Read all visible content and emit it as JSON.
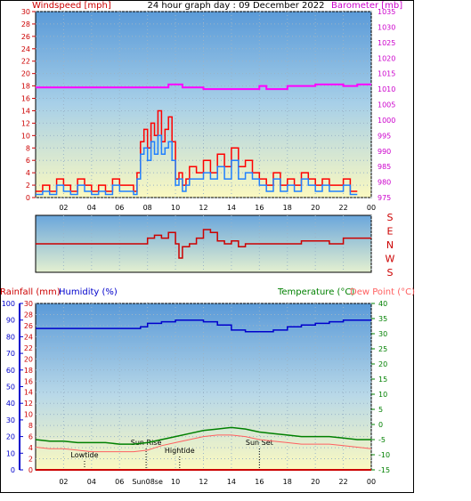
{
  "chart_data": [
    {
      "type": "line",
      "title": "24 hour graph day : 09 December 2022",
      "ylabel_left": "Windspeed [mph]",
      "ylabel_right": "Barometer [mb]",
      "x_ticks": [
        "02",
        "04",
        "06",
        "08",
        "10",
        "12",
        "14",
        "16",
        "18",
        "20",
        "22",
        "00"
      ],
      "x_range": [
        0,
        24
      ],
      "y_left_ticks": [
        "0",
        "2",
        "4",
        "6",
        "8",
        "10",
        "12",
        "14",
        "16",
        "18",
        "20",
        "22",
        "24",
        "26",
        "28",
        "30"
      ],
      "y_left_range": [
        0,
        30
      ],
      "y_right_ticks": [
        "975",
        "980",
        "985",
        "990",
        "995",
        "1000",
        "1005",
        "1010",
        "1015",
        "1020",
        "1025",
        "1030",
        "1035"
      ],
      "y_right_range": [
        975,
        1035
      ],
      "series": [
        {
          "name": "Windspeed [mph]",
          "color": "#ff0000",
          "x": [
            0,
            0.5,
            1,
            1.5,
            2,
            2.5,
            3,
            3.5,
            4,
            4.5,
            5,
            5.5,
            6,
            6.5,
            7,
            7.25,
            7.5,
            7.75,
            8,
            8.25,
            8.5,
            8.75,
            9,
            9.25,
            9.5,
            9.75,
            10,
            10.25,
            10.5,
            10.75,
            11,
            11.5,
            12,
            12.5,
            13,
            13.5,
            14,
            14.5,
            15,
            15.5,
            16,
            16.5,
            17,
            17.5,
            18,
            18.5,
            19,
            19.5,
            20,
            20.5,
            21,
            21.5,
            22,
            22.5,
            23
          ],
          "values": [
            1,
            2,
            1,
            3,
            2,
            1,
            3,
            2,
            1,
            2,
            1,
            3,
            2,
            2,
            1,
            4,
            9,
            11,
            8,
            12,
            10,
            14,
            9,
            11,
            13,
            9,
            3,
            4,
            2,
            3,
            5,
            4,
            6,
            4,
            7,
            5,
            8,
            5,
            6,
            4,
            3,
            2,
            4,
            2,
            3,
            2,
            4,
            3,
            2,
            3,
            2,
            2,
            3,
            1,
            1
          ]
        },
        {
          "name": "Gust",
          "color": "#2080ff",
          "x": [
            0,
            0.5,
            1,
            1.5,
            2,
            2.5,
            3,
            3.5,
            4,
            4.5,
            5,
            5.5,
            6,
            6.5,
            7,
            7.25,
            7.5,
            7.75,
            8,
            8.25,
            8.5,
            8.75,
            9,
            9.25,
            9.5,
            9.75,
            10,
            10.25,
            10.5,
            10.75,
            11,
            11.5,
            12,
            12.5,
            13,
            13.5,
            14,
            14.5,
            15,
            15.5,
            16,
            16.5,
            17,
            17.5,
            18,
            18.5,
            19,
            19.5,
            20,
            20.5,
            21,
            21.5,
            22,
            22.5,
            23
          ],
          "values": [
            0.5,
            1,
            0.5,
            2,
            1,
            0.5,
            2,
            1,
            0.5,
            1,
            0.5,
            2,
            1,
            1,
            0.5,
            3,
            7,
            8,
            6,
            9,
            7,
            10,
            7,
            8,
            9,
            6,
            2,
            3,
            1,
            2,
            3,
            3,
            4,
            3,
            5,
            3,
            6,
            3,
            4,
            3,
            2,
            1,
            3,
            1,
            2,
            1,
            3,
            2,
            1,
            2,
            1,
            1,
            2,
            0.5,
            0.5
          ]
        },
        {
          "name": "Barometer [mb]",
          "color": "#ff00ff",
          "axis": "right",
          "x": [
            0,
            1,
            2,
            3,
            4,
            5,
            6,
            7,
            8,
            9,
            9.5,
            10,
            10.5,
            11,
            11.5,
            12,
            12.5,
            13,
            13.5,
            14,
            14.5,
            15,
            15.5,
            16,
            16.5,
            17,
            18,
            19,
            20,
            21,
            21.5,
            22,
            23,
            24
          ],
          "values": [
            1010.5,
            1010.5,
            1010.5,
            1010.5,
            1010.5,
            1010.5,
            1010.5,
            1010.5,
            1010.5,
            1010.5,
            1011.5,
            1011.5,
            1010.5,
            1010.5,
            1010.5,
            1010,
            1010,
            1010,
            1010,
            1010,
            1010,
            1010,
            1010,
            1011,
            1010,
            1010,
            1011,
            1011,
            1011.5,
            1011.5,
            1011.5,
            1011,
            1011.5,
            1011.5
          ]
        }
      ]
    },
    {
      "type": "line",
      "title": "",
      "y_ticks": [
        "S",
        "E",
        "N",
        "W",
        "S"
      ],
      "series": [
        {
          "name": "Wind direction",
          "color": "#cc0000",
          "x": [
            0,
            1,
            2,
            3,
            4,
            5,
            6,
            7,
            7.5,
            8,
            8.5,
            9,
            9.5,
            10,
            10.25,
            10.5,
            11,
            11.5,
            12,
            12.5,
            13,
            13.5,
            14,
            14.5,
            15,
            15.5,
            16,
            17,
            18,
            19,
            20,
            21,
            22,
            23,
            24
          ],
          "values": [
            0.5,
            0.5,
            0.5,
            0.5,
            0.5,
            0.5,
            0.5,
            0.5,
            0.5,
            0.4,
            0.35,
            0.4,
            0.3,
            0.5,
            0.75,
            0.55,
            0.5,
            0.4,
            0.25,
            0.3,
            0.45,
            0.5,
            0.45,
            0.55,
            0.5,
            0.5,
            0.5,
            0.5,
            0.5,
            0.45,
            0.45,
            0.5,
            0.4,
            0.4,
            0.4
          ]
        }
      ]
    },
    {
      "type": "line",
      "title": "",
      "ylabel_left1": "Rainfall (mm)",
      "ylabel_left2": "Humidity (%)",
      "ylabel_right1": "Temperature (°C)",
      "ylabel_right2": "Dew Point (°C)",
      "x_ticks": [
        "02",
        "04",
        "06",
        "08",
        "10",
        "12",
        "14",
        "16",
        "18",
        "20",
        "22",
        "00"
      ],
      "y_humidity_ticks": [
        "0",
        "10",
        "20",
        "30",
        "40",
        "50",
        "60",
        "70",
        "80",
        "90",
        "100"
      ],
      "y_rain_ticks": [
        "0",
        "2",
        "4",
        "6",
        "8",
        "10",
        "12",
        "14",
        "16",
        "18",
        "20",
        "22",
        "24",
        "26",
        "28",
        "30"
      ],
      "y_temp_ticks": [
        "-15",
        "-10",
        "-5",
        "0",
        "5",
        "10",
        "15",
        "20",
        "25",
        "30",
        "35",
        "40"
      ],
      "annotations": [
        {
          "label": "Lowtide",
          "x": 3.5
        },
        {
          "label": "Sun Rise",
          "x": 7.9
        },
        {
          "label": "Hightide",
          "x": 10.3
        },
        {
          "label": "Sun Set",
          "x": 16
        }
      ],
      "sunrise_tick_label": "Sun08se",
      "series": [
        {
          "name": "Humidity (%)",
          "color": "#0000cc",
          "x": [
            0,
            1,
            2,
            3,
            4,
            5,
            6,
            7,
            7.5,
            8,
            8.5,
            9,
            10,
            11,
            12,
            13,
            14,
            15,
            16,
            17,
            18,
            19,
            20,
            21,
            22,
            23,
            24
          ],
          "values": [
            85,
            85,
            85,
            85,
            85,
            85,
            85,
            85,
            86,
            88,
            88,
            89,
            90,
            90,
            89,
            87,
            84,
            83,
            83,
            84,
            86,
            87,
            88,
            89,
            90,
            90,
            90
          ]
        },
        {
          "name": "Temperature (°C)",
          "color": "#008000",
          "x": [
            0,
            1,
            2,
            3,
            4,
            5,
            6,
            7,
            8,
            9,
            10,
            11,
            12,
            13,
            14,
            15,
            16,
            17,
            18,
            19,
            20,
            21,
            22,
            23,
            24
          ],
          "values": [
            -5,
            -5.5,
            -5.5,
            -6,
            -6,
            -6,
            -6.5,
            -6.5,
            -6,
            -5,
            -4,
            -3,
            -2,
            -1.5,
            -1,
            -1.5,
            -2.5,
            -3,
            -3.5,
            -4,
            -4,
            -4,
            -4.5,
            -5,
            -5
          ]
        },
        {
          "name": "Dew Point (°C)",
          "color": "#ff6060",
          "x": [
            0,
            1,
            2,
            3,
            4,
            5,
            6,
            7,
            8,
            9,
            10,
            11,
            12,
            13,
            14,
            15,
            16,
            17,
            18,
            19,
            20,
            21,
            22,
            23,
            24
          ],
          "values": [
            -7.5,
            -8,
            -8,
            -8.5,
            -9,
            -9,
            -9,
            -9,
            -8.5,
            -7,
            -6,
            -5,
            -4,
            -3.5,
            -3.5,
            -4,
            -5,
            -5.5,
            -6,
            -6.5,
            -6.5,
            -6.5,
            -7,
            -7.5,
            -8
          ]
        },
        {
          "name": "Rainfall (mm)",
          "color": "#cc0000",
          "x": [
            0,
            24
          ],
          "values": [
            0,
            0
          ]
        }
      ]
    }
  ]
}
